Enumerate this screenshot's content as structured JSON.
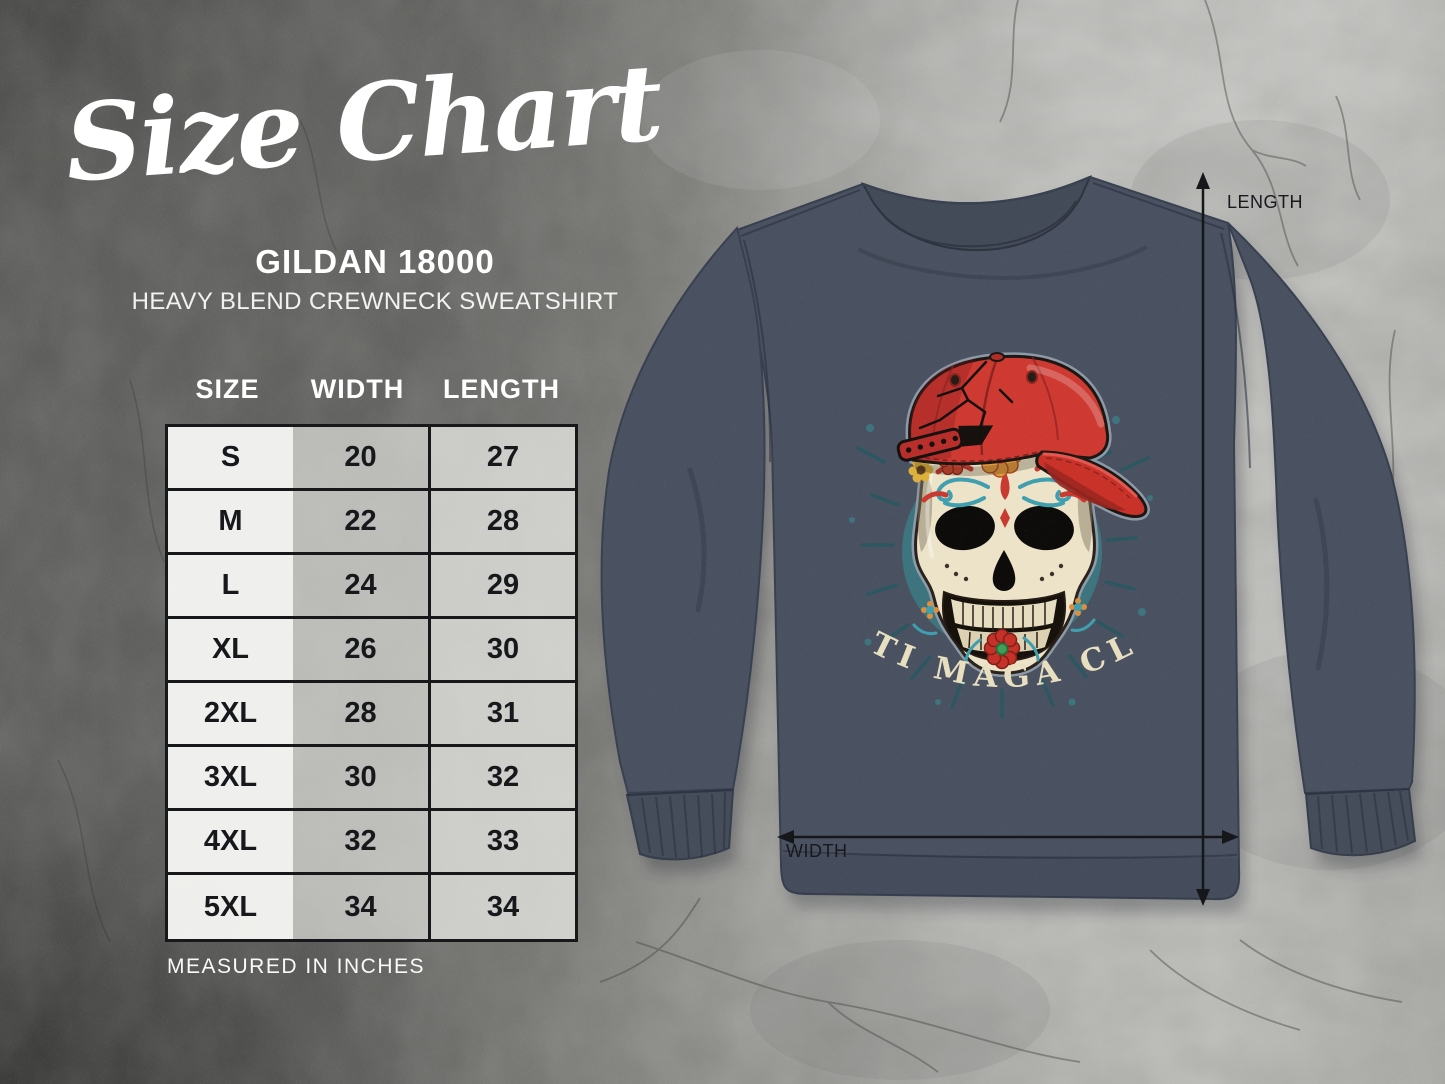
{
  "header": {
    "title": "Size Chart",
    "product_name": "GILDAN 18000",
    "product_subtitle": "HEAVY BLEND CREWNECK SWEATSHIRT"
  },
  "size_table": {
    "headers": [
      "SIZE",
      "WIDTH",
      "LENGTH"
    ],
    "rows": [
      {
        "size": "S",
        "width": "20",
        "length": "27"
      },
      {
        "size": "M",
        "width": "22",
        "length": "28"
      },
      {
        "size": "L",
        "width": "24",
        "length": "29"
      },
      {
        "size": "XL",
        "width": "26",
        "length": "30"
      },
      {
        "size": "2XL",
        "width": "28",
        "length": "31"
      },
      {
        "size": "3XL",
        "width": "30",
        "length": "32"
      },
      {
        "size": "4XL",
        "width": "32",
        "length": "33"
      },
      {
        "size": "5XL",
        "width": "34",
        "length": "34"
      }
    ],
    "note": "MEASURED IN INCHES"
  },
  "mockup": {
    "design_text": "ANTI MAGA CLUB",
    "length_label": "LENGTH",
    "width_label": "WIDTH"
  },
  "colors": {
    "cap_red": "#ce3a32",
    "burst_teal": "#3d747d",
    "skull_cream": "#ece3c9",
    "design_text_cream": "#e8dfc0",
    "sweatshirt_navy": "#4a5161",
    "table_border": "#17181a",
    "arrow_black": "#15171b"
  },
  "chart_data": {
    "type": "table",
    "title": "Gildan 18000 Heavy Blend Crewneck Sweatshirt — Size Chart",
    "units": "inches",
    "columns": [
      "SIZE",
      "WIDTH",
      "LENGTH"
    ],
    "rows": [
      [
        "S",
        20,
        27
      ],
      [
        "M",
        22,
        28
      ],
      [
        "L",
        24,
        29
      ],
      [
        "XL",
        26,
        30
      ],
      [
        "2XL",
        28,
        31
      ],
      [
        "3XL",
        30,
        32
      ],
      [
        "4XL",
        32,
        33
      ],
      [
        "5XL",
        34,
        34
      ]
    ]
  }
}
